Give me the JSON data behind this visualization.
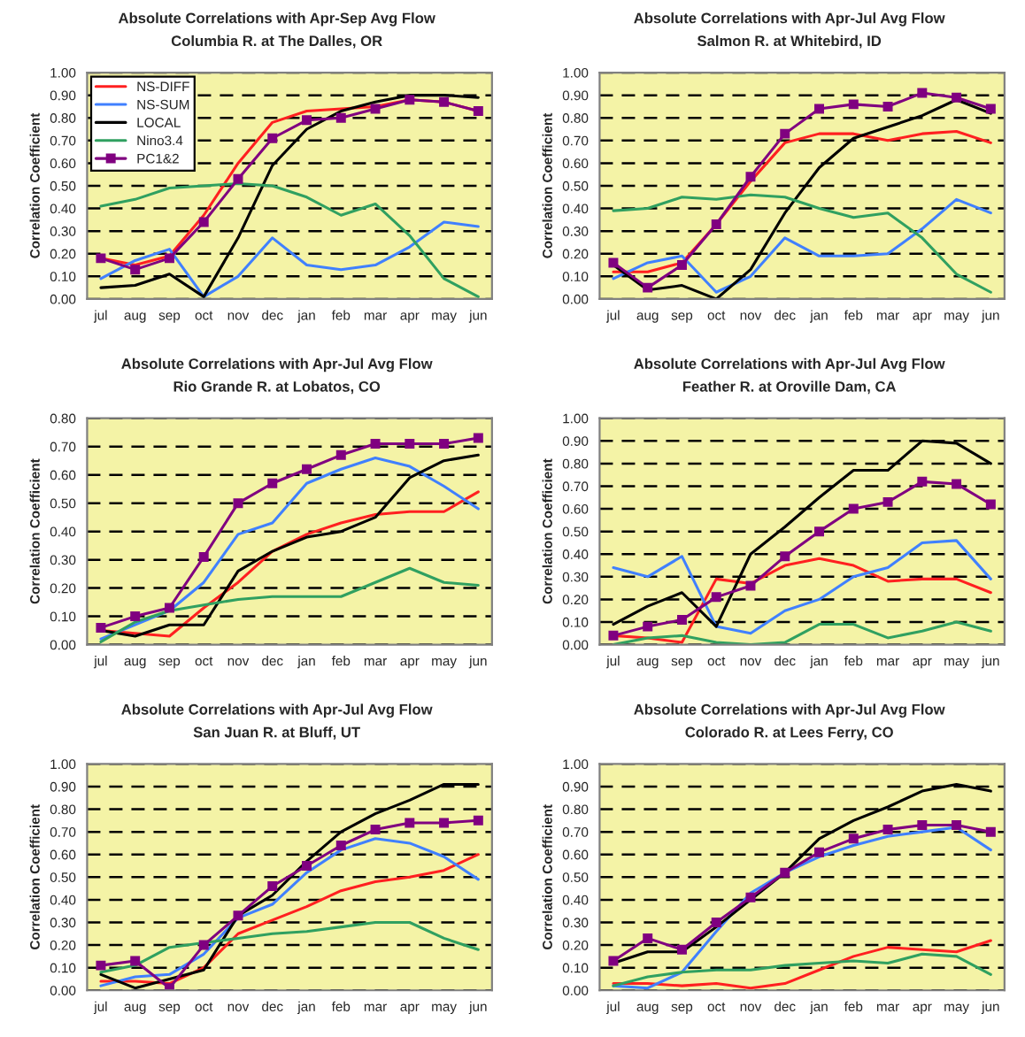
{
  "chart_data": [
    {
      "type": "line",
      "title": "Absolute Correlations with Apr-Sep Avg Flow",
      "subtitle": "Columbia R. at The Dalles, OR",
      "ylabel": "Correlation Coefficient",
      "categories": [
        "jul",
        "aug",
        "sep",
        "oct",
        "nov",
        "dec",
        "jan",
        "feb",
        "mar",
        "apr",
        "may",
        "jun"
      ],
      "ylim": [
        0,
        1
      ],
      "yticks": [
        {
          "value": 0,
          "label": "0.00"
        },
        {
          "value": 0.1,
          "label": "0.10"
        },
        {
          "value": 0.2,
          "label": "0.20"
        },
        {
          "value": 0.3,
          "label": "0.30"
        },
        {
          "value": 0.4,
          "label": "0.40"
        },
        {
          "value": 0.5,
          "label": "0.50"
        },
        {
          "value": 0.6,
          "label": "0.60"
        },
        {
          "value": 0.7,
          "label": "0.70"
        },
        {
          "value": 0.8,
          "label": "0.80"
        },
        {
          "value": 0.9,
          "label": "0.90"
        },
        {
          "value": 1,
          "label": "1.00"
        }
      ],
      "grid": "y",
      "legend": "top left",
      "series": [
        {
          "name": "NS-DIFF",
          "color": "#ff2020",
          "values": [
            0.18,
            0.15,
            0.19,
            0.37,
            0.6,
            0.78,
            0.83,
            0.84,
            0.85,
            0.88,
            0.87,
            0.83
          ]
        },
        {
          "name": "NS-SUM",
          "color": "#4080ff",
          "values": [
            0.09,
            0.17,
            0.22,
            0.01,
            0.1,
            0.27,
            0.15,
            0.13,
            0.15,
            0.23,
            0.34,
            0.32
          ]
        },
        {
          "name": "LOCAL",
          "color": "#000000",
          "values": [
            0.05,
            0.06,
            0.11,
            0.01,
            0.27,
            0.59,
            0.75,
            0.83,
            0.87,
            0.9,
            0.9,
            0.89
          ]
        },
        {
          "name": "Nino3.4",
          "color": "#30a060",
          "values": [
            0.41,
            0.44,
            0.49,
            0.5,
            0.51,
            0.5,
            0.45,
            0.37,
            0.42,
            0.28,
            0.09,
            0.01
          ]
        },
        {
          "name": "PC1&2",
          "color": "#800080",
          "marker": "square",
          "values": [
            0.18,
            0.13,
            0.18,
            0.34,
            0.53,
            0.71,
            0.79,
            0.8,
            0.84,
            0.88,
            0.87,
            0.83
          ]
        }
      ]
    },
    {
      "type": "line",
      "title": "Absolute Correlations with Apr-Jul Avg Flow",
      "subtitle": "Salmon R. at Whitebird, ID",
      "ylabel": "Correlation Coefficient",
      "categories": [
        "jul",
        "aug",
        "sep",
        "oct",
        "nov",
        "dec",
        "jan",
        "feb",
        "mar",
        "apr",
        "may",
        "jun"
      ],
      "ylim": [
        0,
        1
      ],
      "yticks": [
        {
          "value": 0,
          "label": "0.00"
        },
        {
          "value": 0.1,
          "label": "0.10"
        },
        {
          "value": 0.2,
          "label": "0.20"
        },
        {
          "value": 0.3,
          "label": "0.30"
        },
        {
          "value": 0.4,
          "label": "0.40"
        },
        {
          "value": 0.5,
          "label": "0.50"
        },
        {
          "value": 0.6,
          "label": "0.60"
        },
        {
          "value": 0.7,
          "label": "0.70"
        },
        {
          "value": 0.8,
          "label": "0.80"
        },
        {
          "value": 0.9,
          "label": "0.90"
        },
        {
          "value": 1,
          "label": "1.00"
        }
      ],
      "grid": "y",
      "series": [
        {
          "color": "#ff2020",
          "values": [
            0.12,
            0.12,
            0.16,
            0.33,
            0.52,
            0.69,
            0.73,
            0.73,
            0.7,
            0.73,
            0.74,
            0.69
          ]
        },
        {
          "color": "#4080ff",
          "values": [
            0.09,
            0.16,
            0.19,
            0.03,
            0.1,
            0.27,
            0.19,
            0.19,
            0.2,
            0.31,
            0.44,
            0.38
          ]
        },
        {
          "color": "#000000",
          "values": [
            0.15,
            0.04,
            0.06,
            0.0,
            0.13,
            0.38,
            0.58,
            0.71,
            0.76,
            0.81,
            0.88,
            0.82
          ]
        },
        {
          "color": "#30a060",
          "values": [
            0.39,
            0.4,
            0.45,
            0.44,
            0.46,
            0.45,
            0.4,
            0.36,
            0.38,
            0.27,
            0.11,
            0.03
          ]
        },
        {
          "color": "#800080",
          "marker": "square",
          "values": [
            0.16,
            0.05,
            0.15,
            0.33,
            0.54,
            0.73,
            0.84,
            0.86,
            0.85,
            0.91,
            0.89,
            0.84
          ]
        }
      ]
    },
    {
      "type": "line",
      "title": "Absolute Correlations with Apr-Jul Avg Flow",
      "subtitle": "Rio Grande R. at Lobatos, CO",
      "ylabel": "Correlation Coefficient",
      "categories": [
        "jul",
        "aug",
        "sep",
        "oct",
        "nov",
        "dec",
        "jan",
        "feb",
        "mar",
        "apr",
        "may",
        "jun"
      ],
      "ylim": [
        0,
        0.8
      ],
      "yticks": [
        {
          "value": 0,
          "label": "0.00"
        },
        {
          "value": 0.1,
          "label": "0.10"
        },
        {
          "value": 0.2,
          "label": "0.20"
        },
        {
          "value": 0.3,
          "label": "0.30"
        },
        {
          "value": 0.4,
          "label": "0.40"
        },
        {
          "value": 0.5,
          "label": "0.50"
        },
        {
          "value": 0.6,
          "label": "0.60"
        },
        {
          "value": 0.7,
          "label": "0.70"
        },
        {
          "value": 0.8,
          "label": "0.80"
        }
      ],
      "grid": "y",
      "series": [
        {
          "color": "#ff2020",
          "values": [
            0.05,
            0.04,
            0.03,
            0.13,
            0.22,
            0.33,
            0.39,
            0.43,
            0.46,
            0.47,
            0.47,
            0.54
          ]
        },
        {
          "color": "#4080ff",
          "values": [
            0.02,
            0.07,
            0.12,
            0.22,
            0.39,
            0.43,
            0.57,
            0.62,
            0.66,
            0.63,
            0.56,
            0.48
          ]
        },
        {
          "color": "#000000",
          "values": [
            0.05,
            0.03,
            0.07,
            0.07,
            0.26,
            0.33,
            0.38,
            0.4,
            0.45,
            0.59,
            0.65,
            0.67
          ]
        },
        {
          "color": "#30a060",
          "values": [
            0.01,
            0.08,
            0.12,
            0.14,
            0.16,
            0.17,
            0.17,
            0.17,
            0.22,
            0.27,
            0.22,
            0.21
          ]
        },
        {
          "color": "#800080",
          "marker": "square",
          "values": [
            0.06,
            0.1,
            0.13,
            0.31,
            0.5,
            0.57,
            0.62,
            0.67,
            0.71,
            0.71,
            0.71,
            0.73
          ]
        }
      ]
    },
    {
      "type": "line",
      "title": "Absolute Correlations with Apr-Jul Avg Flow",
      "subtitle": "Feather R. at Oroville Dam, CA",
      "ylabel": "Correlation Coefficient",
      "categories": [
        "jul",
        "aug",
        "sep",
        "oct",
        "nov",
        "dec",
        "jan",
        "feb",
        "mar",
        "apr",
        "may",
        "jun"
      ],
      "ylim": [
        0,
        1
      ],
      "yticks": [
        {
          "value": 0,
          "label": "0.00"
        },
        {
          "value": 0.1,
          "label": "0.10"
        },
        {
          "value": 0.2,
          "label": "0.20"
        },
        {
          "value": 0.3,
          "label": "0.30"
        },
        {
          "value": 0.4,
          "label": "0.40"
        },
        {
          "value": 0.5,
          "label": "0.50"
        },
        {
          "value": 0.6,
          "label": "0.60"
        },
        {
          "value": 0.7,
          "label": "0.70"
        },
        {
          "value": 0.8,
          "label": "0.80"
        },
        {
          "value": 0.9,
          "label": "0.90"
        },
        {
          "value": 1,
          "label": "1.00"
        }
      ],
      "grid": "y",
      "series": [
        {
          "color": "#ff2020",
          "values": [
            0.04,
            0.03,
            0.01,
            0.29,
            0.27,
            0.35,
            0.38,
            0.35,
            0.28,
            0.29,
            0.29,
            0.23
          ]
        },
        {
          "color": "#4080ff",
          "values": [
            0.34,
            0.3,
            0.39,
            0.08,
            0.05,
            0.15,
            0.2,
            0.3,
            0.34,
            0.45,
            0.46,
            0.29
          ]
        },
        {
          "color": "#000000",
          "values": [
            0.09,
            0.17,
            0.23,
            0.08,
            0.4,
            0.52,
            0.65,
            0.77,
            0.77,
            0.9,
            0.89,
            0.8
          ]
        },
        {
          "color": "#30a060",
          "values": [
            0.0,
            0.03,
            0.04,
            0.01,
            0.0,
            0.01,
            0.09,
            0.09,
            0.03,
            0.06,
            0.1,
            0.06
          ]
        },
        {
          "color": "#800080",
          "marker": "square",
          "values": [
            0.04,
            0.08,
            0.11,
            0.21,
            0.26,
            0.39,
            0.5,
            0.6,
            0.63,
            0.72,
            0.71,
            0.62
          ]
        }
      ]
    },
    {
      "type": "line",
      "title": "Absolute Correlations with Apr-Jul Avg Flow",
      "subtitle": "San Juan R. at Bluff, UT",
      "ylabel": "Correlation Coefficient",
      "categories": [
        "jul",
        "aug",
        "sep",
        "oct",
        "nov",
        "dec",
        "jan",
        "feb",
        "mar",
        "apr",
        "may",
        "jun"
      ],
      "ylim": [
        0,
        1
      ],
      "yticks": [
        {
          "value": 0,
          "label": "0.00"
        },
        {
          "value": 0.1,
          "label": "0.10"
        },
        {
          "value": 0.2,
          "label": "0.20"
        },
        {
          "value": 0.3,
          "label": "0.30"
        },
        {
          "value": 0.4,
          "label": "0.40"
        },
        {
          "value": 0.5,
          "label": "0.50"
        },
        {
          "value": 0.6,
          "label": "0.60"
        },
        {
          "value": 0.7,
          "label": "0.70"
        },
        {
          "value": 0.8,
          "label": "0.80"
        },
        {
          "value": 0.9,
          "label": "0.90"
        },
        {
          "value": 1,
          "label": "1.00"
        }
      ],
      "grid": "y",
      "series": [
        {
          "color": "#ff2020",
          "values": [
            0.04,
            0.04,
            0.03,
            0.1,
            0.25,
            0.31,
            0.37,
            0.44,
            0.48,
            0.5,
            0.53,
            0.6
          ]
        },
        {
          "color": "#4080ff",
          "values": [
            0.02,
            0.06,
            0.07,
            0.16,
            0.32,
            0.38,
            0.52,
            0.62,
            0.67,
            0.65,
            0.59,
            0.49
          ]
        },
        {
          "color": "#000000",
          "values": [
            0.07,
            0.01,
            0.05,
            0.09,
            0.33,
            0.42,
            0.57,
            0.7,
            0.78,
            0.84,
            0.91,
            0.91
          ]
        },
        {
          "color": "#30a060",
          "values": [
            0.08,
            0.11,
            0.19,
            0.21,
            0.23,
            0.25,
            0.26,
            0.28,
            0.3,
            0.3,
            0.23,
            0.18
          ]
        },
        {
          "color": "#800080",
          "marker": "square",
          "values": [
            0.11,
            0.13,
            0.01,
            0.2,
            0.33,
            0.46,
            0.55,
            0.64,
            0.71,
            0.74,
            0.74,
            0.75
          ]
        }
      ]
    },
    {
      "type": "line",
      "title": "Absolute Correlations with Apr-Jul Avg Flow",
      "subtitle": "Colorado R. at Lees Ferry, CO",
      "ylabel": "Correlation Coefficient",
      "categories": [
        "jul",
        "aug",
        "sep",
        "oct",
        "nov",
        "dec",
        "jan",
        "feb",
        "mar",
        "apr",
        "may",
        "jun"
      ],
      "ylim": [
        0,
        1
      ],
      "yticks": [
        {
          "value": 0,
          "label": "0.00"
        },
        {
          "value": 0.1,
          "label": "0.10"
        },
        {
          "value": 0.2,
          "label": "0.20"
        },
        {
          "value": 0.3,
          "label": "0.30"
        },
        {
          "value": 0.4,
          "label": "0.40"
        },
        {
          "value": 0.5,
          "label": "0.50"
        },
        {
          "value": 0.6,
          "label": "0.60"
        },
        {
          "value": 0.7,
          "label": "0.70"
        },
        {
          "value": 0.8,
          "label": "0.80"
        },
        {
          "value": 0.9,
          "label": "0.90"
        },
        {
          "value": 1,
          "label": "1.00"
        }
      ],
      "grid": "y",
      "series": [
        {
          "color": "#ff2020",
          "values": [
            0.03,
            0.03,
            0.02,
            0.03,
            0.01,
            0.03,
            0.09,
            0.15,
            0.19,
            0.18,
            0.17,
            0.22
          ]
        },
        {
          "color": "#4080ff",
          "values": [
            0.02,
            0.01,
            0.08,
            0.26,
            0.43,
            0.52,
            0.59,
            0.64,
            0.68,
            0.7,
            0.72,
            0.62
          ]
        },
        {
          "color": "#000000",
          "values": [
            0.12,
            0.17,
            0.17,
            0.28,
            0.4,
            0.52,
            0.67,
            0.75,
            0.81,
            0.88,
            0.91,
            0.88
          ]
        },
        {
          "color": "#30a060",
          "values": [
            0.02,
            0.06,
            0.08,
            0.09,
            0.09,
            0.11,
            0.12,
            0.13,
            0.12,
            0.16,
            0.15,
            0.07
          ]
        },
        {
          "color": "#800080",
          "marker": "square",
          "values": [
            0.13,
            0.23,
            0.18,
            0.3,
            0.41,
            0.52,
            0.61,
            0.67,
            0.71,
            0.73,
            0.73,
            0.7
          ]
        }
      ]
    }
  ]
}
